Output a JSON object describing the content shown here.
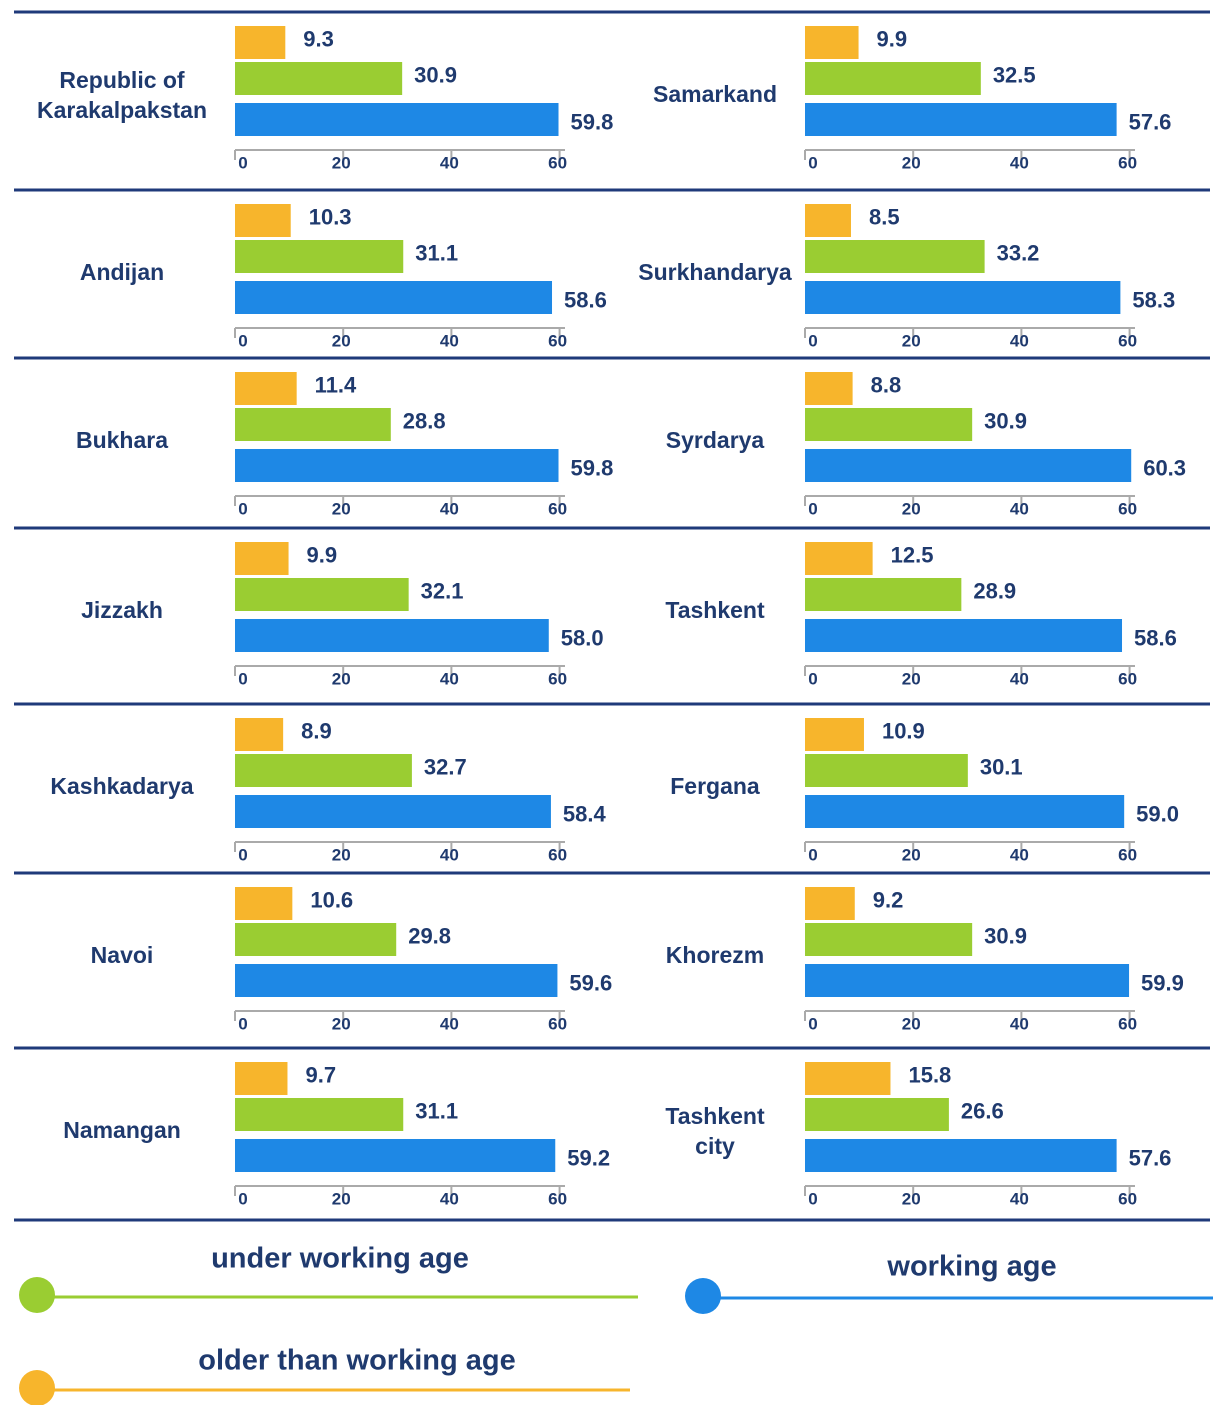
{
  "chart_data": [
    {
      "type": "bar",
      "title": "Republic of\nKarakalpakstan",
      "values": [
        9.3,
        30.9,
        59.8
      ],
      "colors": [
        "#f7b52c",
        "#9acd32",
        "#1e88e5"
      ],
      "xlim": [
        0,
        61
      ],
      "xticks": [
        0,
        20,
        40,
        60
      ]
    },
    {
      "type": "bar",
      "title": "Samarkand",
      "values": [
        9.9,
        32.5,
        57.6
      ],
      "colors": [
        "#f7b52c",
        "#9acd32",
        "#1e88e5"
      ],
      "xlim": [
        0,
        61
      ],
      "xticks": [
        0,
        20,
        40,
        60
      ]
    },
    {
      "type": "bar",
      "title": "Andijan",
      "values": [
        10.3,
        31.1,
        58.6
      ],
      "colors": [
        "#f7b52c",
        "#9acd32",
        "#1e88e5"
      ],
      "xlim": [
        0,
        61
      ],
      "xticks": [
        0,
        20,
        40,
        60
      ]
    },
    {
      "type": "bar",
      "title": "Surkhandarya",
      "values": [
        8.5,
        33.2,
        58.3
      ],
      "colors": [
        "#f7b52c",
        "#9acd32",
        "#1e88e5"
      ],
      "xlim": [
        0,
        61
      ],
      "xticks": [
        0,
        20,
        40,
        60
      ]
    },
    {
      "type": "bar",
      "title": "Bukhara",
      "values": [
        11.4,
        28.8,
        59.8
      ],
      "colors": [
        "#f7b52c",
        "#9acd32",
        "#1e88e5"
      ],
      "xlim": [
        0,
        61
      ],
      "xticks": [
        0,
        20,
        40,
        60
      ]
    },
    {
      "type": "bar",
      "title": "Syrdarya",
      "values": [
        8.8,
        30.9,
        60.3
      ],
      "colors": [
        "#f7b52c",
        "#9acd32",
        "#1e88e5"
      ],
      "xlim": [
        0,
        61
      ],
      "xticks": [
        0,
        20,
        40,
        60
      ]
    },
    {
      "type": "bar",
      "title": "Jizzakh",
      "values": [
        9.9,
        32.1,
        58
      ],
      "value_labels": [
        "9.9",
        "32.1",
        "58.0"
      ],
      "colors": [
        "#f7b52c",
        "#9acd32",
        "#1e88e5"
      ],
      "xlim": [
        0,
        61
      ],
      "xticks": [
        0,
        20,
        40,
        60
      ]
    },
    {
      "type": "bar",
      "title": "Tashkent",
      "values": [
        12.5,
        28.9,
        58.6
      ],
      "colors": [
        "#f7b52c",
        "#9acd32",
        "#1e88e5"
      ],
      "xlim": [
        0,
        61
      ],
      "xticks": [
        0,
        20,
        40,
        60
      ]
    },
    {
      "type": "bar",
      "title": "Kashkadarya",
      "values": [
        8.9,
        32.7,
        58.4
      ],
      "colors": [
        "#f7b52c",
        "#9acd32",
        "#1e88e5"
      ],
      "xlim": [
        0,
        61
      ],
      "xticks": [
        0,
        20,
        40,
        60
      ]
    },
    {
      "type": "bar",
      "title": "Fergana",
      "values": [
        10.9,
        30.1,
        59
      ],
      "value_labels": [
        "10.9",
        "30.1",
        "59.0"
      ],
      "colors": [
        "#f7b52c",
        "#9acd32",
        "#1e88e5"
      ],
      "xlim": [
        0,
        61
      ],
      "xticks": [
        0,
        20,
        40,
        60
      ]
    },
    {
      "type": "bar",
      "title": "Navoi",
      "values": [
        10.6,
        29.8,
        59.6
      ],
      "colors": [
        "#f7b52c",
        "#9acd32",
        "#1e88e5"
      ],
      "xlim": [
        0,
        61
      ],
      "xticks": [
        0,
        20,
        40,
        60
      ]
    },
    {
      "type": "bar",
      "title": "Khorezm",
      "values": [
        9.2,
        30.9,
        59.9
      ],
      "colors": [
        "#f7b52c",
        "#9acd32",
        "#1e88e5"
      ],
      "xlim": [
        0,
        61
      ],
      "xticks": [
        0,
        20,
        40,
        60
      ]
    },
    {
      "type": "bar",
      "title": "Namangan",
      "values": [
        9.7,
        31.1,
        59.2
      ],
      "colors": [
        "#f7b52c",
        "#9acd32",
        "#1e88e5"
      ],
      "xlim": [
        0,
        61
      ],
      "xticks": [
        0,
        20,
        40,
        60
      ]
    },
    {
      "type": "bar",
      "title": "Tashkent\ncity",
      "values": [
        15.8,
        26.6,
        57.6
      ],
      "colors": [
        "#f7b52c",
        "#9acd32",
        "#1e88e5"
      ],
      "xlim": [
        0,
        61
      ],
      "xticks": [
        0,
        20,
        40,
        60
      ]
    }
  ],
  "legend": [
    {
      "name": "under working age",
      "color": "#9acd32"
    },
    {
      "name": "working age",
      "color": "#1e88e5"
    },
    {
      "name": "older than working age",
      "color": "#f7b52c"
    }
  ]
}
